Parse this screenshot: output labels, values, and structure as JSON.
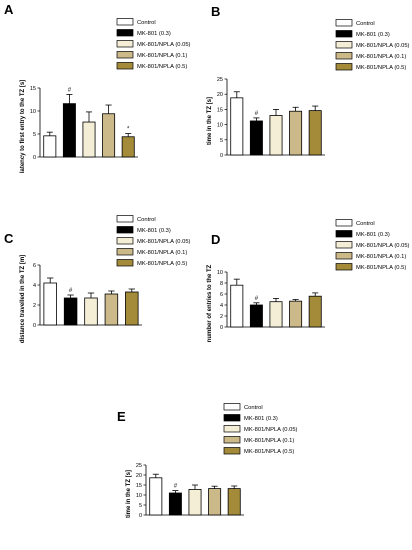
{
  "colors": {
    "Control": "#ffffff",
    "MK-801 (0.3)": "#000000",
    "MK-801/NPLA (0.05)": "#f4eed6",
    "MK-801/NPLA (0.1)": "#cbb98a",
    "MK-801/NPLA (0.5)": "#a38b3a"
  },
  "legend": [
    "Control",
    "MK-801 (0.3)",
    "MK-801/NPLA (0.05)",
    "MK-801/NPLA (0.1)",
    "MK-801/NPLA (0.5)"
  ],
  "chart_data": [
    {
      "panel": "A",
      "type": "bar",
      "ylabel": "latency to first entry to the TZ [s]",
      "ylim": [
        0,
        15
      ],
      "yticks": [
        0,
        5,
        10,
        15
      ],
      "categories": [
        "Control",
        "MK-801 (0.3)",
        "MK-801/NPLA (0.05)",
        "MK-801/NPLA (0.1)",
        "MK-801/NPLA (0.5)"
      ],
      "values": [
        4.6,
        11.6,
        7.6,
        9.4,
        4.4
      ],
      "errors": [
        0.8,
        2.0,
        2.2,
        1.9,
        0.7
      ],
      "annotations": [
        "",
        "#",
        "",
        "",
        "*"
      ]
    },
    {
      "panel": "B",
      "type": "bar",
      "ylabel": "time in the TZ [s]",
      "ylim": [
        0,
        25
      ],
      "yticks": [
        0,
        5,
        10,
        15,
        20,
        25
      ],
      "categories": [
        "Control",
        "MK-801 (0.3)",
        "MK-801/NPLA (0.05)",
        "MK-801/NPLA (0.1)",
        "MK-801/NPLA (0.5)"
      ],
      "values": [
        18.8,
        11.2,
        13.0,
        14.4,
        14.6
      ],
      "errors": [
        2.0,
        1.0,
        2.0,
        1.3,
        1.5
      ],
      "annotations": [
        "",
        "#",
        "",
        "",
        ""
      ]
    },
    {
      "panel": "C",
      "type": "bar",
      "ylabel": "distance travelled in the TZ [m]",
      "ylim": [
        0,
        6
      ],
      "yticks": [
        0,
        2,
        4,
        6
      ],
      "categories": [
        "Control",
        "MK-801 (0.3)",
        "MK-801/NPLA (0.05)",
        "MK-801/NPLA (0.1)",
        "MK-801/NPLA (0.5)"
      ],
      "values": [
        4.2,
        2.7,
        2.7,
        3.1,
        3.3
      ],
      "errors": [
        0.5,
        0.3,
        0.5,
        0.3,
        0.3
      ],
      "annotations": [
        "",
        "#",
        "",
        "",
        ""
      ]
    },
    {
      "panel": "D",
      "type": "bar",
      "ylabel": "number of entries to the TZ",
      "ylim": [
        0,
        10
      ],
      "yticks": [
        0,
        2,
        4,
        6,
        8,
        10
      ],
      "categories": [
        "Control",
        "MK-801 (0.3)",
        "MK-801/NPLA (0.05)",
        "MK-801/NPLA (0.1)",
        "MK-801/NPLA (0.5)"
      ],
      "values": [
        7.6,
        4.0,
        4.6,
        4.7,
        5.6
      ],
      "errors": [
        1.1,
        0.4,
        0.6,
        0.3,
        0.6
      ],
      "annotations": [
        "",
        "#",
        "",
        "",
        ""
      ]
    },
    {
      "panel": "E",
      "type": "bar",
      "ylabel": "time in the TZ [s]",
      "ylim": [
        0,
        25
      ],
      "yticks": [
        0,
        5,
        10,
        15,
        20,
        25
      ],
      "categories": [
        "Control",
        "MK-801 (0.3)",
        "MK-801/NPLA (0.05)",
        "MK-801/NPLA (0.1)",
        "MK-801/NPLA (0.5)"
      ],
      "values": [
        18.6,
        11.0,
        12.8,
        13.2,
        13.2
      ],
      "errors": [
        1.8,
        1.2,
        2.2,
        1.2,
        1.3
      ],
      "annotations": [
        "",
        "#",
        "",
        "",
        ""
      ]
    }
  ]
}
